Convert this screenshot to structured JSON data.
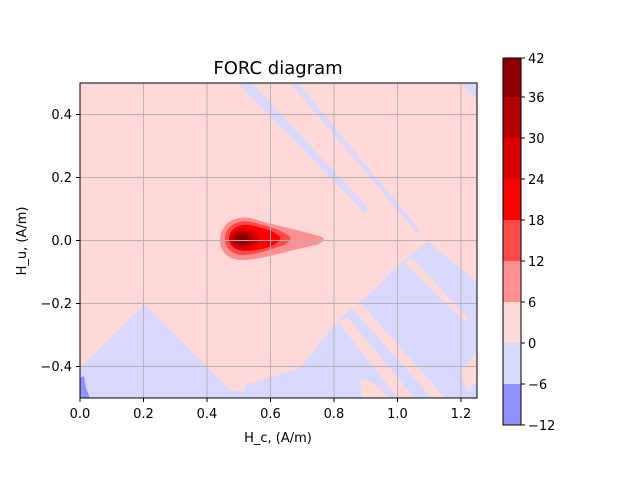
{
  "chart_data": {
    "type": "heatmap",
    "title": "FORC diagram",
    "xlabel": "H_c, (A/m)",
    "ylabel": "H_u, (A/m)",
    "xlim": [
      0.0,
      1.25
    ],
    "ylim": [
      -0.5,
      0.5
    ],
    "x_ticks": [
      "0.0",
      "0.2",
      "0.4",
      "0.6",
      "0.8",
      "1.0",
      "1.2"
    ],
    "y_ticks": [
      "0.4",
      "0.2",
      "0.0",
      "−0.2",
      "−0.4"
    ],
    "grid": true,
    "colorbar": {
      "levels": [
        -12,
        -6,
        0,
        6,
        12,
        18,
        24,
        30,
        36,
        42
      ],
      "tick_labels": [
        "42",
        "36",
        "30",
        "24",
        "18",
        "12",
        "6",
        "0",
        "−6",
        "−12"
      ],
      "colors": [
        "#9090ff",
        "#d8d8ff",
        "#ffd8d8",
        "#ff9090",
        "#ff4848",
        "#ff0000",
        "#dc0000",
        "#b40000",
        "#8c0000"
      ]
    },
    "background_level_range": [
      0,
      6
    ],
    "peak": {
      "x": 0.52,
      "y": 0.0,
      "value_range": [
        36,
        42
      ]
    },
    "negative_regions": [
      {
        "region": "lower-left triangle",
        "value_range": [
          -6,
          0
        ]
      },
      {
        "region": "lower-right",
        "value_range": [
          -6,
          0
        ]
      },
      {
        "region": "diagonal streaks upper-right",
        "value_range": [
          -6,
          0
        ]
      },
      {
        "region": "bottom-left corner spot",
        "value_range": [
          -12,
          -6
        ]
      }
    ]
  }
}
